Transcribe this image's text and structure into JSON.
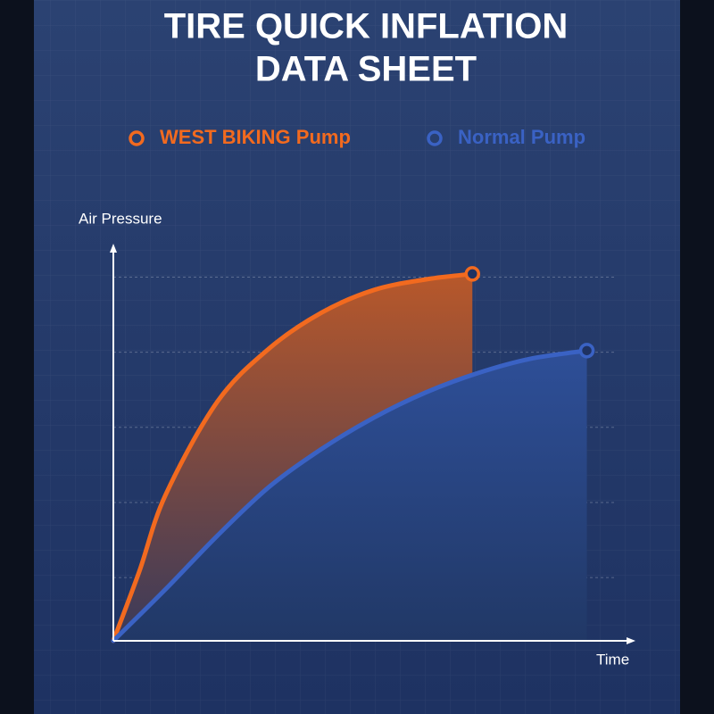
{
  "chart_data": {
    "type": "line",
    "title": [
      "TIRE QUICK INFLATION",
      "DATA SHEET"
    ],
    "y_label": "Air Pressure",
    "x_label": "Time",
    "xlim": [
      0,
      100
    ],
    "ylim": [
      0,
      100
    ],
    "yticks": [
      16,
      35,
      54,
      73,
      92
    ],
    "grid": true,
    "series": [
      {
        "name": "WEST BIKING Pump",
        "color": "#f26a1f",
        "x": [
          0,
          5,
          10,
          20,
          30,
          40,
          50,
          60,
          69
        ],
        "values": [
          0,
          17.6,
          36.8,
          60.5,
          74,
          83,
          88.7,
          91.4,
          92.8
        ]
      },
      {
        "name": "Normal Pump",
        "color": "#3a62c4",
        "x": [
          0,
          10,
          20,
          30,
          40,
          50,
          60,
          70,
          80,
          91
        ],
        "values": [
          0,
          13,
          26.6,
          39,
          48.5,
          56.4,
          62.8,
          67.7,
          71.3,
          73.4
        ]
      }
    ]
  }
}
